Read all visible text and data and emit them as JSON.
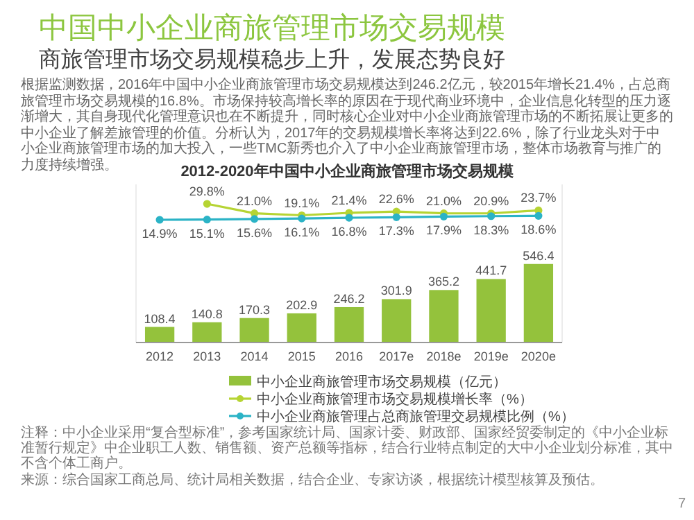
{
  "chart_data": {
    "type": "bar",
    "title": "中国中小企业商旅管理市场交易规模",
    "subtitle": "商旅管理市场交易规模稳步上升，发展态势良好",
    "annotations": [
      "根据监测数据，2016年中国中小企业商旅管理市场交易规模达到246.2亿元，较2015年增长21.4%，占总商旅管理市场交易规模的16.8%。市场保持较高增长率的原因在于现代商业环境中，企业信息化转型的压力逐渐增大，其自身现代化管理意识也在不断提升，同时核心企业对中小企业商旅管理市场的不断拓展让更多的中小企业了解差旅管理的价值。分析认为，2017年的交易规模增长率将达到22.6%，除了行业龙头对于中小企业商旅管理市场的加大投入，一些TMC新秀也介入了中小企业商旅管理市场，整体市场教育与推广的力度持续增强。",
      "2012-2020年中国中小企业商旅管理市场交易规模",
      "注释：中小企业采用“复合型标准”，参考国家统计局、国家计委、财政部、国家经贸委制定的《中小企业标准暂行规定》中企业职工人数、销售额、资产总额等指标，结合行业特点制定的大中小企业划分标准，其中不含个体工商户。",
      "来源：综合国家工商总局、统计局相关数据，结合企业、专家访谈，根据统计模型核算及预估。",
      "7"
    ],
    "categories": [
      "2012",
      "2013",
      "2014",
      "2015",
      "2016",
      "2017e",
      "2018e",
      "2019e",
      "2020e"
    ],
    "series": [
      {
        "name": "中小企业商旅管理市场交易规模（亿元）",
        "color": "#94c23c",
        "values": [
          108.4,
          140.8,
          170.3,
          202.9,
          246.2,
          301.9,
          365.2,
          441.7,
          546.4
        ],
        "value_labels": [
          "108.4",
          "140.8",
          "170.3",
          "202.9",
          "246.2",
          "301.9",
          "365.2",
          "441.7",
          "546.4"
        ]
      },
      {
        "name": "中小企业商旅管理市场交易规模增长率（%）",
        "type": "line",
        "axis": "y2",
        "color": "#b6d433",
        "values": [
          null,
          29.8,
          21.0,
          19.1,
          21.4,
          22.6,
          21.0,
          20.9,
          23.7
        ],
        "value_labels": [
          null,
          "29.8%",
          "21.0%",
          "19.1%",
          "21.4%",
          "22.6%",
          "21.0%",
          "20.9%",
          "23.7%"
        ]
      },
      {
        "name": "中小企业商旅管理占总商旅管理交易规模比例（%）",
        "type": "line",
        "axis": "y2",
        "color": "#2bb3c6",
        "values": [
          14.9,
          15.1,
          15.6,
          16.1,
          16.8,
          17.3,
          17.9,
          18.3,
          18.6
        ],
        "value_labels": [
          "14.9%",
          "15.1%",
          "15.6%",
          "16.1%",
          "16.8%",
          "17.3%",
          "17.9%",
          "18.3%",
          "18.6%"
        ]
      }
    ],
    "ylim": [
      0,
      1100
    ],
    "y2lim": [
      -100,
      48
    ],
    "tick_labels": "x",
    "grid": false,
    "legend": "bottom",
    "marker": "circle",
    "line_style": "solid"
  }
}
